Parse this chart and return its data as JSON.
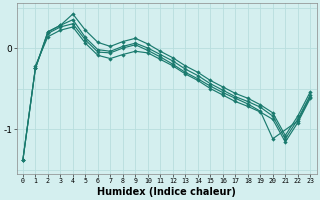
{
  "xlabel": "Humidex (Indice chaleur)",
  "bg_color": "#d4efef",
  "line_color": "#1a7a6e",
  "grid_color": "#b8dede",
  "xlim": [
    -0.5,
    23.5
  ],
  "ylim": [
    -1.55,
    0.55
  ],
  "yticks": [
    0,
    -1
  ],
  "xticks": [
    0,
    1,
    2,
    3,
    4,
    5,
    6,
    7,
    8,
    9,
    10,
    11,
    12,
    13,
    14,
    15,
    16,
    17,
    18,
    19,
    20,
    21,
    22,
    23
  ],
  "series": [
    {
      "x": [
        0,
        1,
        2,
        3,
        4,
        5,
        6,
        7,
        8,
        9,
        10,
        11,
        12,
        13,
        14,
        15,
        16,
        17,
        18,
        19,
        20,
        21,
        22,
        23
      ],
      "y": [
        -1.38,
        -0.25,
        0.2,
        0.28,
        0.35,
        0.13,
        -0.02,
        -0.04,
        0.02,
        0.06,
        0.0,
        -0.08,
        -0.16,
        -0.26,
        -0.34,
        -0.44,
        -0.52,
        -0.6,
        -0.66,
        -0.73,
        -0.84,
        -1.12,
        -0.88,
        -0.58
      ]
    },
    {
      "x": [
        0,
        1,
        2,
        3,
        4,
        5,
        6,
        7,
        8,
        9,
        10,
        11,
        12,
        13,
        14,
        15,
        16,
        17,
        18,
        19,
        20,
        21,
        22,
        23
      ],
      "y": [
        -1.38,
        -0.25,
        0.2,
        0.28,
        0.42,
        0.22,
        0.07,
        0.02,
        0.08,
        0.12,
        0.05,
        -0.04,
        -0.12,
        -0.22,
        -0.3,
        -0.4,
        -0.48,
        -0.56,
        -0.62,
        -0.7,
        -0.8,
        -1.08,
        -0.84,
        -0.54
      ]
    },
    {
      "x": [
        1,
        2,
        3,
        4,
        5,
        6,
        7,
        8,
        9,
        10,
        11,
        12,
        13,
        14,
        15,
        16,
        17,
        18,
        19,
        20,
        21,
        22,
        23
      ],
      "y": [
        -0.22,
        0.14,
        0.22,
        0.26,
        0.06,
        -0.09,
        -0.13,
        -0.08,
        -0.04,
        -0.06,
        -0.14,
        -0.22,
        -0.32,
        -0.4,
        -0.5,
        -0.58,
        -0.66,
        -0.72,
        -0.79,
        -0.88,
        -1.16,
        -0.92,
        -0.62
      ]
    },
    {
      "x": [
        0,
        1,
        2,
        3,
        4,
        5,
        6,
        7,
        8,
        9,
        10,
        11,
        12,
        13,
        14,
        15,
        16,
        17,
        18,
        19,
        20,
        22,
        23
      ],
      "y": [
        -1.38,
        -0.25,
        0.18,
        0.26,
        0.3,
        0.1,
        -0.05,
        -0.06,
        0.0,
        0.04,
        -0.03,
        -0.11,
        -0.2,
        -0.3,
        -0.38,
        -0.47,
        -0.55,
        -0.62,
        -0.69,
        -0.78,
        -1.12,
        -0.9,
        -0.6
      ]
    }
  ]
}
